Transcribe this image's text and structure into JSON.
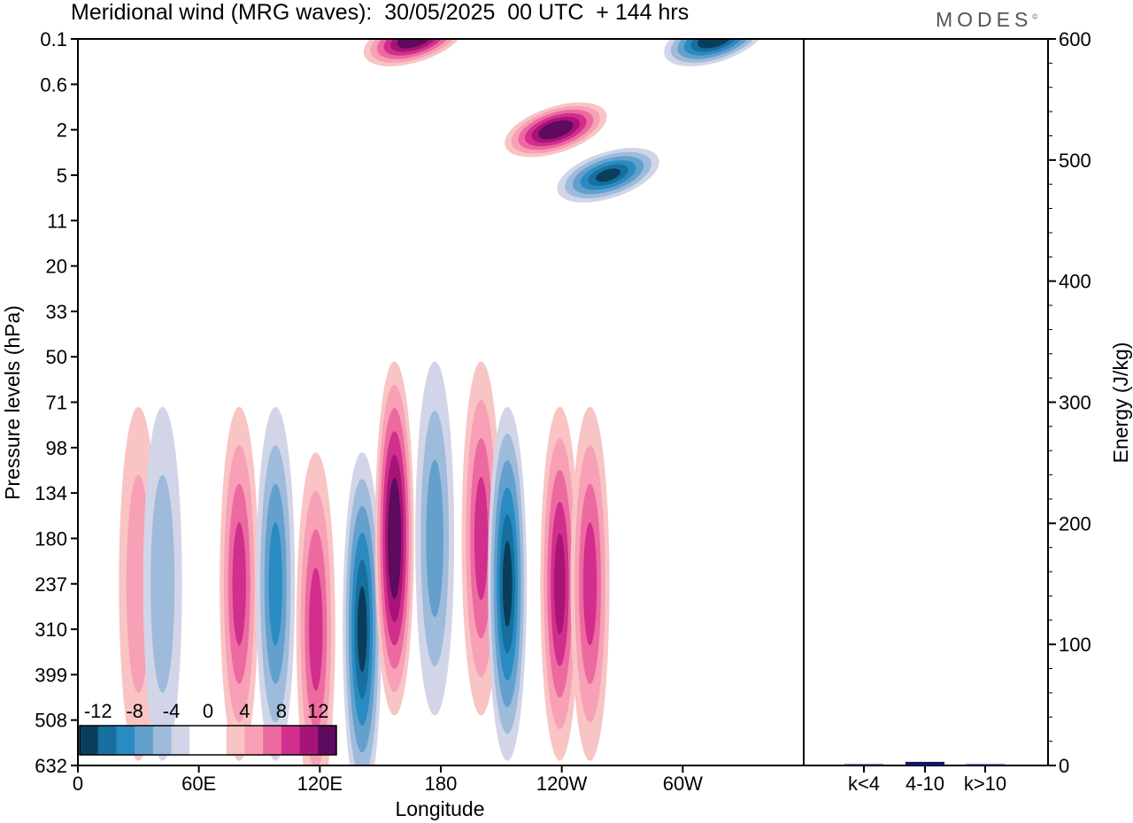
{
  "header": {
    "title": "Meridional wind (MRG waves):  30/05/2025  00 UTC  + 144 hrs",
    "logo": "MODES"
  },
  "chart_data": [
    {
      "type": "heatmap",
      "title": "Meridional wind (MRG waves):  30/05/2025  00 UTC  + 144 hrs",
      "xlabel": "Longitude",
      "ylabel": "Pressure levels (hPa)",
      "x_tick_labels": [
        "0",
        "60E",
        "120E",
        "180",
        "120W",
        "60W"
      ],
      "x_ticks_deg": [
        0,
        60,
        120,
        180,
        240,
        300
      ],
      "xlim": [
        0,
        360
      ],
      "y_tick_labels": [
        "0.1",
        "0.6",
        "2",
        "5",
        "11",
        "20",
        "33",
        "50",
        "71",
        "98",
        "134",
        "180",
        "237",
        "310",
        "399",
        "508",
        "632"
      ],
      "colorbar": {
        "labels": [
          "-12",
          "-8",
          "-4",
          "0",
          "4",
          "8",
          "12"
        ],
        "levels": [
          -14,
          -12,
          -10,
          -8,
          -6,
          -4,
          -2,
          0,
          2,
          4,
          6,
          8,
          10,
          12,
          14
        ],
        "colors": [
          "#0a3d5c",
          "#166f9e",
          "#2a8bc2",
          "#63a0cc",
          "#9fbbdc",
          "#d2d5e8",
          "#ffffff",
          "#ffffff",
          "#f9c4c4",
          "#f7a0b6",
          "#ec6aa0",
          "#d12e8d",
          "#a61478",
          "#5e0a5e"
        ]
      },
      "features": [
        {
          "lon": 30,
          "level": "237",
          "value": 4
        },
        {
          "lon": 42,
          "level": "237",
          "value": -4
        },
        {
          "lon": 80,
          "level": "237",
          "value": 8
        },
        {
          "lon": 98,
          "level": "237",
          "value": -8
        },
        {
          "lon": 118,
          "level": "310",
          "value": 8
        },
        {
          "lon": 141,
          "level": "310",
          "value": -12
        },
        {
          "lon": 157,
          "level": "180",
          "value": 14
        },
        {
          "lon": 177,
          "level": "180",
          "value": -6
        },
        {
          "lon": 200,
          "level": "180",
          "value": 8
        },
        {
          "lon": 213,
          "level": "237",
          "value": -12
        },
        {
          "lon": 239,
          "level": "237",
          "value": 10
        },
        {
          "lon": 254,
          "level": "237",
          "value": 8
        },
        {
          "lon": 237,
          "level": "2",
          "value": 14
        },
        {
          "lon": 263,
          "level": "5",
          "value": -12
        },
        {
          "lon": 167,
          "level": "0.1",
          "value": 14
        },
        {
          "lon": 316,
          "level": "0.1",
          "value": -14
        }
      ]
    },
    {
      "type": "bar",
      "categories": [
        "k<4",
        "4-10",
        "k>10"
      ],
      "values": [
        0,
        3,
        0
      ],
      "ylabel": "Energy (J/kg)",
      "ylim": [
        0,
        600
      ],
      "y_tick_labels": [
        "0",
        "100",
        "200",
        "300",
        "400",
        "500",
        "600"
      ],
      "bar_color": "#14146e"
    }
  ]
}
